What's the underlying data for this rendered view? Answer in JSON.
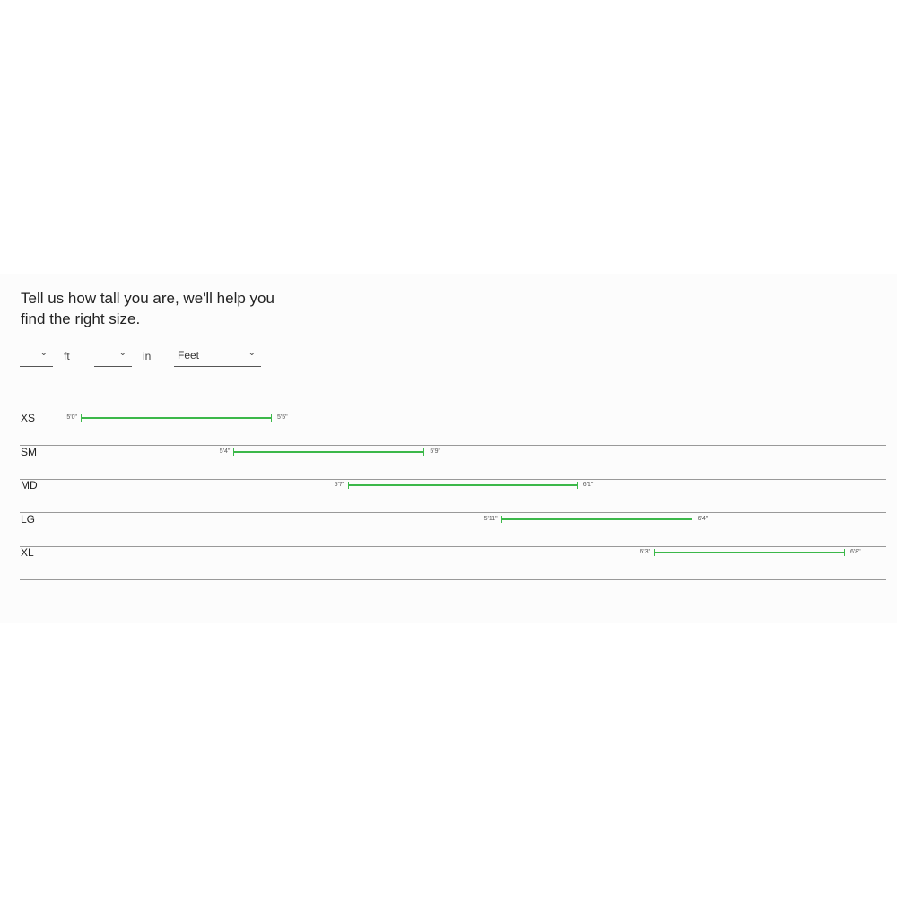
{
  "heading": "Tell us how tall you are, we'll help you find the right size.",
  "inputs": {
    "feet": {
      "value": "",
      "unit": "ft"
    },
    "inches": {
      "value": "",
      "unit": "in"
    },
    "unit_select": {
      "value": "Feet"
    }
  },
  "accent_color": "#3cb84a",
  "sizes": [
    {
      "size": "XS",
      "min": "5'0\"",
      "max": "5'5\""
    },
    {
      "size": "SM",
      "min": "5'4\"",
      "max": "5'9\""
    },
    {
      "size": "MD",
      "min": "5'7\"",
      "max": "6'1\""
    },
    {
      "size": "LG",
      "min": "5'11\"",
      "max": "6'4\""
    },
    {
      "size": "XL",
      "min": "6'3\"",
      "max": "6'8\""
    }
  ]
}
